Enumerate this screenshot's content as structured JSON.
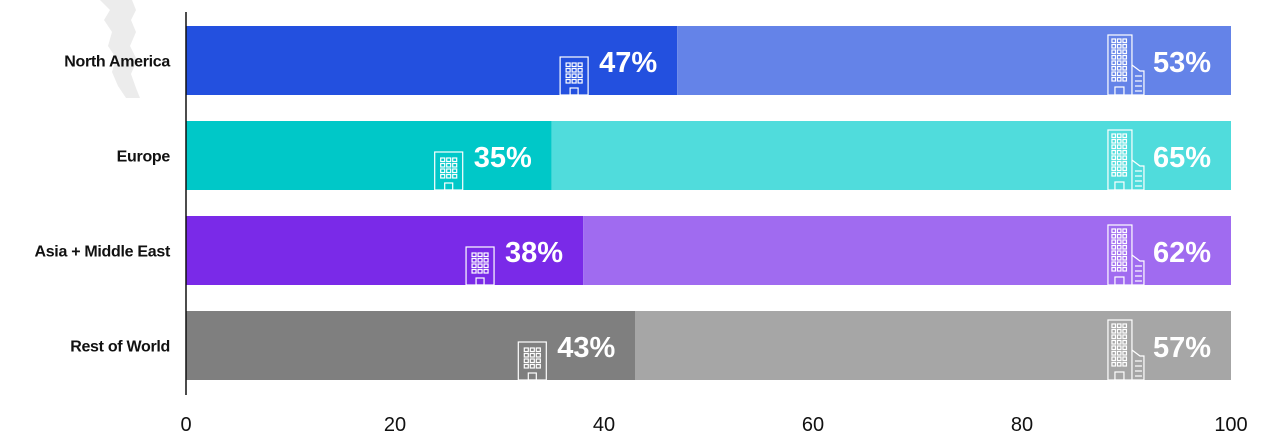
{
  "chart_data": {
    "type": "bar",
    "orientation": "horizontal",
    "stacked": true,
    "categories": [
      "North America",
      "Europe",
      "Asia + Middle East",
      "Rest of World"
    ],
    "series": [
      {
        "icon": "small-building-icon",
        "values": [
          47,
          35,
          38,
          43
        ],
        "labels": [
          "47%",
          "35%",
          "38%",
          "43%"
        ],
        "colors": [
          "#2350df",
          "#00c8c8",
          "#7a2ae8",
          "#7f7f7f"
        ]
      },
      {
        "icon": "large-office-building-icon",
        "values": [
          53,
          65,
          62,
          57
        ],
        "labels": [
          "53%",
          "65%",
          "62%",
          "57%"
        ],
        "colors": [
          "#6483e8",
          "#50dcdc",
          "#a06bf0",
          "#a6a6a6"
        ]
      }
    ],
    "xlim": [
      0,
      100
    ],
    "xticks": [
      0,
      20,
      40,
      60,
      80,
      100
    ],
    "xtick_labels": [
      "0",
      "20",
      "40",
      "60",
      "80",
      "100"
    ],
    "grid": false,
    "legend": "none"
  }
}
